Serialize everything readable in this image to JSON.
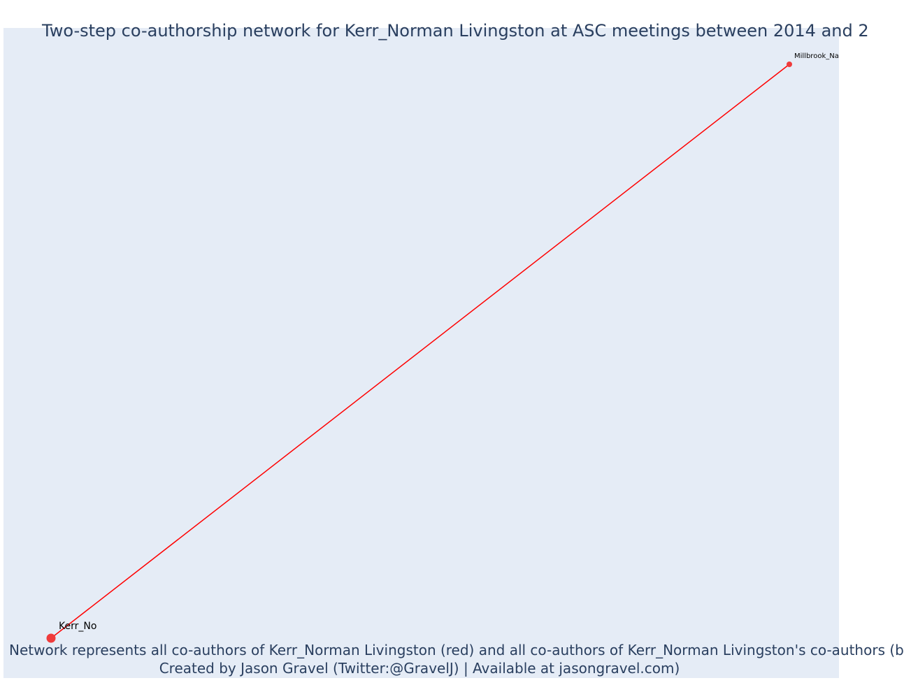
{
  "title": "Two-step co-authorship network for Kerr_Norman Livingston at ASC meetings between 2014 and 2",
  "footer": {
    "line1": "Network represents all co-authors of Kerr_Norman Livingston (red) and all co-authors of Kerr_Norman Livingston's co-authors (b",
    "line2": "Created by Jason Gravel (Twitter:@GravelJ) | Available at jasongravel.com)"
  },
  "colors": {
    "background": "#e5ecf6",
    "edge": "#ff0000",
    "node": "#ef3b3b",
    "text": "#2a3f5f"
  },
  "nodes": [
    {
      "id": "kerr",
      "label": "Kerr_No",
      "color": "#ef3b3b"
    },
    {
      "id": "millbrook",
      "label": "Millbrook_Na",
      "color": "#ef3b3b"
    }
  ],
  "edges": [
    {
      "source": "kerr",
      "target": "millbrook",
      "color": "#ff0000"
    }
  ]
}
